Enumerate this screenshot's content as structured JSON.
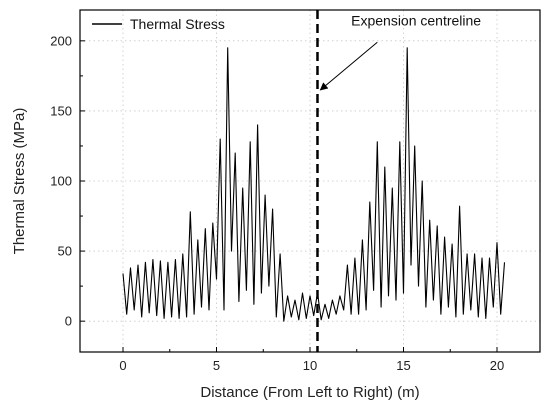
{
  "chart_data": {
    "type": "line",
    "title": "",
    "xlabel": "Distance (From Left to Right) (m)",
    "ylabel": "Thermal Stress (MPa)",
    "xlim": [
      -2.3,
      22.3
    ],
    "ylim": [
      -22,
      222
    ],
    "xticks": [
      0,
      5,
      10,
      15,
      20
    ],
    "yticks": [
      0,
      50,
      100,
      150,
      200
    ],
    "grid": "dotted",
    "legend": "top-left",
    "series": [
      {
        "name": "Thermal Stress",
        "color": "#000000",
        "x": [
          0.0,
          0.2,
          0.4,
          0.6,
          0.8,
          1.0,
          1.2,
          1.4,
          1.6,
          1.8,
          2.0,
          2.2,
          2.4,
          2.6,
          2.8,
          3.0,
          3.2,
          3.4,
          3.6,
          3.8,
          4.0,
          4.2,
          4.4,
          4.6,
          4.8,
          5.0,
          5.2,
          5.4,
          5.6,
          5.8,
          6.0,
          6.2,
          6.4,
          6.6,
          6.8,
          7.0,
          7.2,
          7.4,
          7.6,
          7.8,
          8.0,
          8.2,
          8.4,
          8.6,
          8.8,
          9.0,
          9.2,
          9.4,
          9.6,
          9.8,
          10.0,
          10.2,
          10.4,
          10.6,
          10.8,
          11.0,
          11.2,
          11.4,
          11.6,
          11.8,
          12.0,
          12.2,
          12.4,
          12.6,
          12.8,
          13.0,
          13.2,
          13.4,
          13.6,
          13.8,
          14.0,
          14.2,
          14.4,
          14.6,
          14.8,
          15.0,
          15.2,
          15.4,
          15.6,
          15.8,
          16.0,
          16.2,
          16.4,
          16.6,
          16.8,
          17.0,
          17.2,
          17.4,
          17.6,
          17.8,
          18.0,
          18.2,
          18.4,
          18.6,
          18.8,
          19.0,
          19.2,
          19.4,
          19.6,
          19.8,
          20.0,
          20.2,
          20.4
        ],
        "values": [
          34,
          5,
          38,
          8,
          40,
          3,
          42,
          6,
          44,
          4,
          43,
          2,
          42,
          3,
          44,
          2,
          48,
          3,
          78,
          5,
          58,
          10,
          66,
          8,
          70,
          30,
          130,
          8,
          195,
          50,
          120,
          14,
          95,
          22,
          128,
          12,
          140,
          20,
          90,
          25,
          80,
          3,
          48,
          0,
          18,
          3,
          15,
          1,
          20,
          2,
          18,
          4,
          20,
          1,
          12,
          2,
          15,
          5,
          18,
          8,
          40,
          5,
          45,
          5,
          58,
          8,
          85,
          22,
          128,
          10,
          110,
          18,
          95,
          15,
          128,
          20,
          195,
          40,
          125,
          25,
          100,
          10,
          72,
          15,
          68,
          5,
          60,
          10,
          55,
          3,
          82,
          5,
          48,
          8,
          48,
          3,
          45,
          2,
          45,
          10,
          56,
          5,
          42
        ]
      }
    ],
    "annotations": [
      {
        "type": "vline",
        "x": 10.4,
        "style": "dashed",
        "label": "Expension centreline",
        "arrow_to_y": 165
      }
    ]
  }
}
